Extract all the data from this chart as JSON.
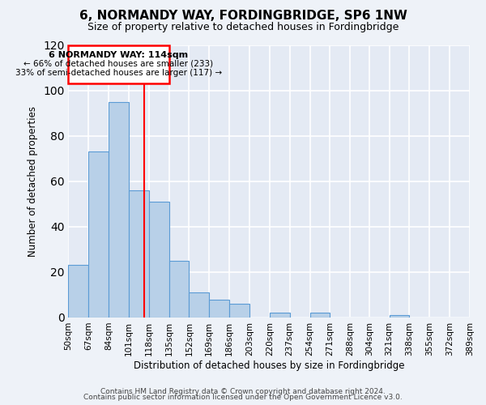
{
  "title": "6, NORMANDY WAY, FORDINGBRIDGE, SP6 1NW",
  "subtitle": "Size of property relative to detached houses in Fordingbridge",
  "xlabel": "Distribution of detached houses by size in Fordingbridge",
  "ylabel": "Number of detached properties",
  "footer_lines": [
    "Contains HM Land Registry data © Crown copyright and database right 2024.",
    "Contains public sector information licensed under the Open Government Licence v3.0."
  ],
  "bin_labels": [
    "50sqm",
    "67sqm",
    "84sqm",
    "101sqm",
    "118sqm",
    "135sqm",
    "152sqm",
    "169sqm",
    "186sqm",
    "203sqm",
    "220sqm",
    "237sqm",
    "254sqm",
    "271sqm",
    "288sqm",
    "304sqm",
    "321sqm",
    "338sqm",
    "355sqm",
    "372sqm",
    "389sqm"
  ],
  "bar_values": [
    23,
    73,
    95,
    56,
    51,
    25,
    11,
    8,
    6,
    0,
    2,
    0,
    2,
    0,
    0,
    0,
    1,
    0,
    0,
    0
  ],
  "bin_edges": [
    50,
    67,
    84,
    101,
    118,
    135,
    152,
    169,
    186,
    203,
    220,
    237,
    254,
    271,
    288,
    304,
    321,
    338,
    355,
    372,
    389
  ],
  "bar_color": "#b8d0e8",
  "bar_edge_color": "#5b9bd5",
  "vline_x": 114,
  "vline_color": "red",
  "annotation_title": "6 NORMANDY WAY: 114sqm",
  "annotation_line1": "← 66% of detached houses are smaller (233)",
  "annotation_line2": "33% of semi-detached houses are larger (117) →",
  "annotation_box_color": "red",
  "ylim": [
    0,
    120
  ],
  "yticks": [
    0,
    20,
    40,
    60,
    80,
    100,
    120
  ],
  "background_color": "#eef2f8",
  "plot_background_color": "#e4eaf4",
  "grid_color": "white"
}
